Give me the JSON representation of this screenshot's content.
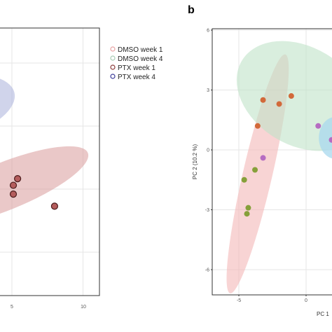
{
  "panel_b_label": "b",
  "colors": {
    "dmso_w1": "#e8a3a3",
    "dmso_w4": "#a8ccb4",
    "ptx_w1": "#8b3a3a",
    "ptx_w4": "#3c3c9a",
    "ellipse_red": "#d99a9a",
    "ellipse_blue": "#aab0db",
    "ellipse_pink": "#f4b8b8",
    "ellipse_green": "#bfe3c8",
    "ellipse_cyan": "#a8d8ee",
    "point_orange": "#d2693a",
    "point_green": "#86a03a",
    "point_purple": "#b66cc2",
    "point_blue": "#4a8ad0",
    "point_red_fill": "#b45c5c",
    "point_red_edge": "#4a1a1a",
    "frame": "#333333",
    "grid": "#e6e6e6"
  },
  "chart_data": [
    {
      "type": "scatter",
      "panel": "a",
      "x_ticks": [
        "5",
        "10"
      ],
      "xlim": [
        -1,
        11.3
      ],
      "grid": true,
      "legend": {
        "placement": "right",
        "entries": [
          "DMSO week 1",
          "DMSO week 4",
          "PTX week 1",
          "PTX week 4"
        ]
      },
      "series": [
        {
          "name": "PTX week 1",
          "x": [
            5.4,
            5.1,
            5.1,
            8.0
          ],
          "y": [
            -0.9,
            -1.5,
            -2.3,
            -3.4
          ]
        }
      ],
      "ellipses": [
        {
          "group": "PTX week 1",
          "cx": 4.5,
          "cy": -1.6,
          "rx": 6.3,
          "ry": 1.6,
          "angle": -22
        },
        {
          "group": "PTX week 4",
          "cx": 1.0,
          "cy": 5.6,
          "rx": 4.3,
          "ry": 2.0,
          "angle": -14
        }
      ]
    },
    {
      "type": "scatter",
      "panel": "b",
      "xlabel": "PC 1",
      "ylabel": "PC 2 (10.2 %)",
      "y_ticks": [
        "6",
        "3",
        "0",
        "-3",
        "-6"
      ],
      "x_ticks": [
        "-5",
        "0"
      ],
      "xlim": [
        -7.0,
        2.2
      ],
      "ylim": [
        -7.2,
        6.0
      ],
      "grid": true,
      "series": [
        {
          "group": "orange",
          "x": [
            -3.2,
            -2.0,
            -1.1,
            -3.6
          ],
          "y": [
            2.5,
            2.3,
            2.7,
            1.2
          ]
        },
        {
          "group": "purple",
          "x": [
            0.9,
            1.9,
            -3.2
          ],
          "y": [
            1.2,
            0.5,
            -0.4
          ]
        },
        {
          "group": "green",
          "x": [
            -3.8,
            -4.6,
            -4.3,
            -4.4
          ],
          "y": [
            -1.0,
            -1.5,
            -2.9,
            -3.2
          ]
        }
      ],
      "ellipses": [
        {
          "group": "pink",
          "cx": -3.6,
          "cy": -1.2,
          "rx": 6.1,
          "ry": 1.05,
          "angle": 77
        },
        {
          "group": "green",
          "cx": -0.4,
          "cy": 2.7,
          "rx": 5.1,
          "ry": 3.8,
          "angle": -31
        },
        {
          "group": "cyan",
          "cx": 2.2,
          "cy": 0.6,
          "rx": 1.3,
          "ry": 1.0,
          "angle": 0
        }
      ]
    }
  ]
}
